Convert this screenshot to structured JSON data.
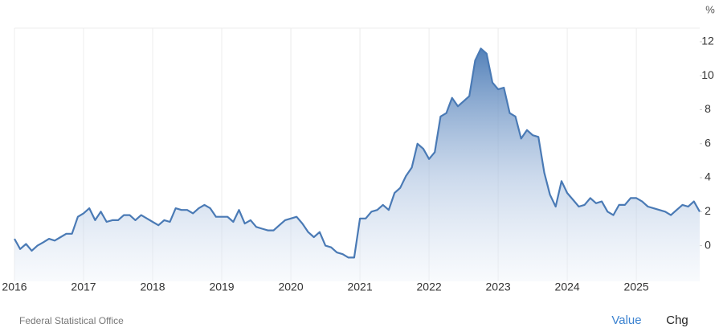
{
  "chart_data": {
    "type": "area",
    "y_unit": "%",
    "source": "Federal Statistical Office",
    "controls": [
      "Value",
      "Chg"
    ],
    "color": "#4a7ab5",
    "x": [
      2016,
      2016.083,
      2016.167,
      2016.25,
      2016.333,
      2016.417,
      2016.5,
      2016.583,
      2016.667,
      2016.75,
      2016.833,
      2016.917,
      2017,
      2017.083,
      2017.167,
      2017.25,
      2017.333,
      2017.417,
      2017.5,
      2017.583,
      2017.667,
      2017.75,
      2017.833,
      2017.917,
      2018,
      2018.083,
      2018.167,
      2018.25,
      2018.333,
      2018.417,
      2018.5,
      2018.583,
      2018.667,
      2018.75,
      2018.833,
      2018.917,
      2019,
      2019.083,
      2019.167,
      2019.25,
      2019.333,
      2019.417,
      2019.5,
      2019.583,
      2019.667,
      2019.75,
      2019.833,
      2019.917,
      2020,
      2020.083,
      2020.167,
      2020.25,
      2020.333,
      2020.417,
      2020.5,
      2020.583,
      2020.667,
      2020.75,
      2020.833,
      2020.917,
      2021,
      2021.083,
      2021.167,
      2021.25,
      2021.333,
      2021.417,
      2021.5,
      2021.583,
      2021.667,
      2021.75,
      2021.833,
      2021.917,
      2022,
      2022.083,
      2022.167,
      2022.25,
      2022.333,
      2022.417,
      2022.5,
      2022.583,
      2022.667,
      2022.75,
      2022.833,
      2022.917,
      2023,
      2023.083,
      2023.167,
      2023.25,
      2023.333,
      2023.417,
      2023.5,
      2023.583,
      2023.667,
      2023.75,
      2023.833,
      2023.917,
      2024,
      2024.083,
      2024.167,
      2024.25,
      2024.333,
      2024.417,
      2024.5,
      2024.583,
      2024.667,
      2024.75,
      2024.833,
      2024.917,
      2025,
      2025.083,
      2025.167,
      2025.25,
      2025.333,
      2025.417,
      2025.5,
      2025.583,
      2025.667,
      2025.75,
      2025.833,
      2025.917
    ],
    "values": [
      0.4,
      -0.2,
      0.1,
      -0.3,
      0.0,
      0.2,
      0.4,
      0.3,
      0.5,
      0.7,
      0.7,
      1.7,
      1.9,
      2.2,
      1.5,
      2.0,
      1.4,
      1.5,
      1.5,
      1.8,
      1.8,
      1.5,
      1.8,
      1.6,
      1.4,
      1.2,
      1.5,
      1.4,
      2.2,
      2.1,
      2.1,
      1.9,
      2.2,
      2.4,
      2.2,
      1.7,
      1.7,
      1.7,
      1.4,
      2.1,
      1.3,
      1.5,
      1.1,
      1.0,
      0.9,
      0.9,
      1.2,
      1.5,
      1.6,
      1.7,
      1.3,
      0.8,
      0.5,
      0.8,
      0.0,
      -0.1,
      -0.4,
      -0.5,
      -0.7,
      -0.7,
      1.6,
      1.6,
      2.0,
      2.1,
      2.4,
      2.1,
      3.1,
      3.4,
      4.1,
      4.6,
      6.0,
      5.7,
      5.1,
      5.5,
      7.6,
      7.8,
      8.7,
      8.2,
      8.5,
      8.8,
      10.9,
      11.6,
      11.3,
      9.6,
      9.2,
      9.3,
      7.8,
      7.6,
      6.3,
      6.8,
      6.5,
      6.4,
      4.3,
      3.0,
      2.3,
      3.8,
      3.1,
      2.7,
      2.3,
      2.4,
      2.8,
      2.5,
      2.6,
      2.0,
      1.8,
      2.4,
      2.4,
      2.8,
      2.8,
      2.6,
      2.3,
      2.2,
      2.1,
      2.0,
      1.8,
      2.1,
      2.4,
      2.3,
      2.6,
      2.0
    ],
    "xlim": [
      2016,
      2025.917
    ],
    "xticks": [
      2016,
      2017,
      2018,
      2019,
      2020,
      2021,
      2022,
      2023,
      2024,
      2025
    ],
    "ylim": [
      -2.1,
      12.8
    ],
    "yticks": [
      0,
      2,
      4,
      6,
      8,
      10,
      12
    ],
    "grid": true
  }
}
